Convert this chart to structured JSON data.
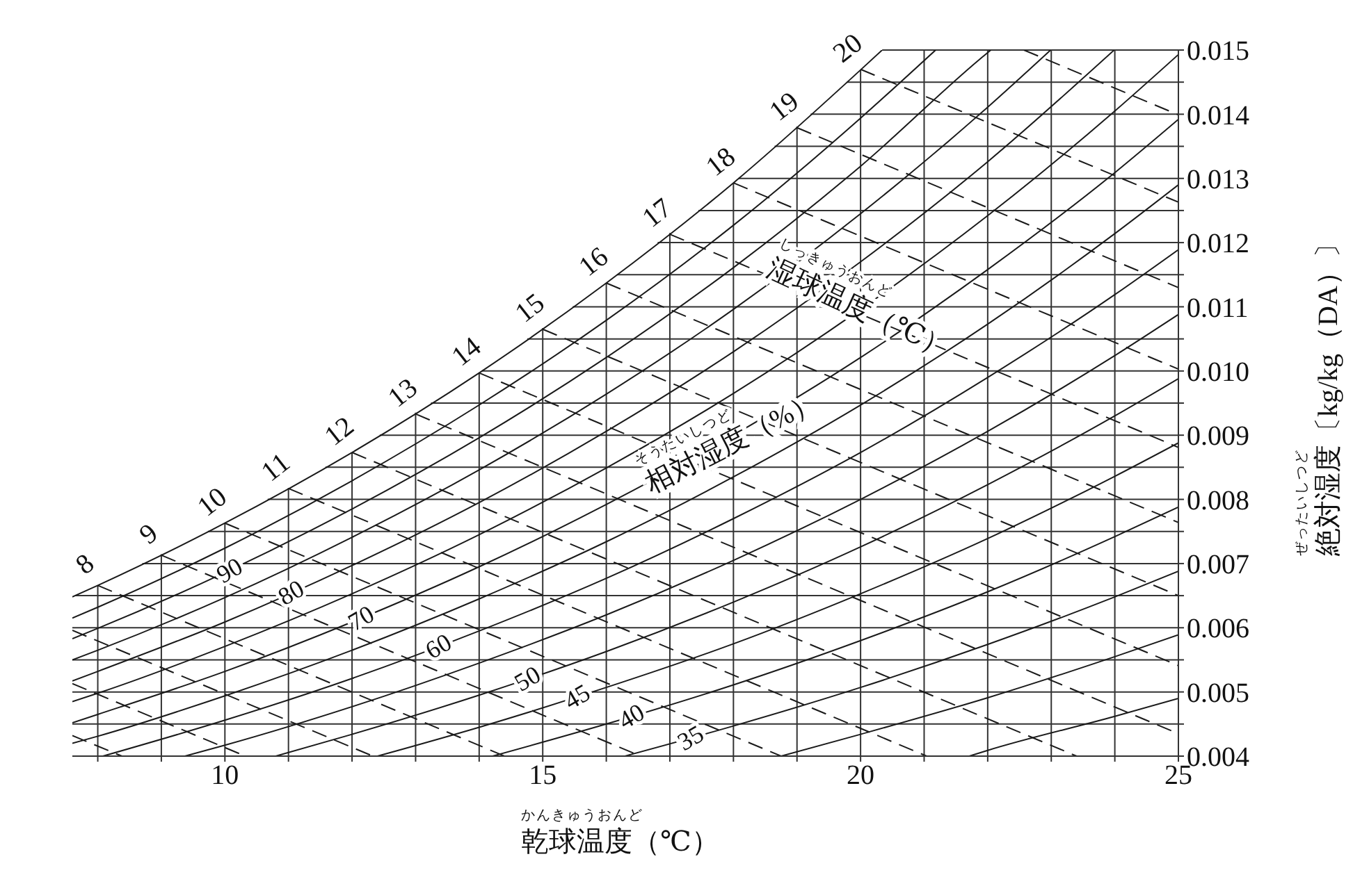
{
  "chart_data": {
    "type": "line",
    "xlabel": "乾球温度（℃）",
    "ylabel": "絶対湿度〔kg/kg（DA）〕",
    "annotations": [
      "湿球温度（℃）",
      "しっきゅうおんど",
      "相対湿度（%）",
      "そうたいしつど",
      "かんきゅうおんど",
      "ぜったいしつど"
    ],
    "xlim": [
      7.6,
      25
    ],
    "ylim": [
      0.004,
      0.015
    ],
    "xticks": [
      {
        "value": 8,
        "label": null
      },
      {
        "value": 9,
        "label": null
      },
      10,
      {
        "value": 11,
        "label": null
      },
      {
        "value": 12,
        "label": null
      },
      {
        "value": 13,
        "label": null
      },
      {
        "value": 14,
        "label": null
      },
      15,
      {
        "value": 16,
        "label": null
      },
      {
        "value": 17,
        "label": null
      },
      {
        "value": 18,
        "label": null
      },
      {
        "value": 19,
        "label": null
      },
      20,
      {
        "value": 21,
        "label": null
      },
      {
        "value": 22,
        "label": null
      },
      {
        "value": 23,
        "label": null
      },
      {
        "value": 24,
        "label": null
      },
      25
    ],
    "yticks": [
      0.004,
      {
        "value": 0.0045,
        "label": null
      },
      0.005,
      {
        "value": 0.0055,
        "label": null
      },
      0.006,
      {
        "value": 0.0065,
        "label": null
      },
      0.007,
      {
        "value": 0.0075,
        "label": null
      },
      0.008,
      {
        "value": 0.0085,
        "label": null
      },
      0.009,
      {
        "value": 0.0095,
        "label": null
      },
      {
        "value": 0.01,
        "label": "0.010"
      },
      {
        "value": 0.0105,
        "label": null
      },
      0.011,
      {
        "value": 0.0115,
        "label": null
      },
      0.012,
      {
        "value": 0.0125,
        "label": null
      },
      0.013,
      {
        "value": 0.0135,
        "label": null
      },
      0.014,
      {
        "value": 0.0145,
        "label": null
      },
      0.015
    ],
    "grid": true,
    "marker": "none",
    "series": [
      {
        "color": "#1a1a1a",
        "line_style": "solid",
        "x": [
          7.6,
          8,
          10,
          12,
          14,
          16,
          18,
          20,
          20.34
        ],
        "values": [
          0.00648,
          0.00666,
          0.00763,
          0.00873,
          0.00997,
          0.01137,
          0.01293,
          0.01469,
          0.015
        ]
      },
      {
        "color": "#1a1a1a",
        "line_style": "solid",
        "x": [
          7.6,
          8,
          10,
          12,
          14,
          16,
          18,
          20,
          21.18
        ],
        "values": [
          0.00615,
          0.00632,
          0.00724,
          0.00829,
          0.00947,
          0.01079,
          0.01227,
          0.01394,
          0.015
        ]
      },
      {
        "name": "90",
        "color": "#1a1a1a",
        "line_style": "solid",
        "x": [
          7.6,
          8,
          10,
          12,
          14,
          16,
          18,
          20,
          22,
          22.05
        ],
        "values": [
          0.00583,
          0.00599,
          0.00686,
          0.00785,
          0.00896,
          0.01021,
          0.01161,
          0.01319,
          0.01496,
          0.015
        ]
      },
      {
        "color": "#1a1a1a",
        "line_style": "solid",
        "x": [
          7.6,
          8,
          10,
          12,
          14,
          16,
          18,
          20,
          22,
          22.99
        ],
        "values": [
          0.0055,
          0.00565,
          0.00647,
          0.00741,
          0.00846,
          0.00964,
          0.01096,
          0.01245,
          0.01411,
          0.015
        ]
      },
      {
        "name": "80",
        "color": "#1a1a1a",
        "line_style": "solid",
        "x": [
          7.6,
          8,
          10,
          12,
          14,
          16,
          18,
          20,
          22,
          23.99
        ],
        "values": [
          0.00517,
          0.00532,
          0.00609,
          0.00697,
          0.00795,
          0.00906,
          0.0103,
          0.0117,
          0.01326,
          0.015
        ]
      },
      {
        "color": "#1a1a1a",
        "line_style": "solid",
        "x": [
          7.6,
          8,
          10,
          12,
          14,
          16,
          18,
          20,
          22,
          24,
          25
        ],
        "values": [
          0.00485,
          0.00498,
          0.00571,
          0.00653,
          0.00745,
          0.00849,
          0.00965,
          0.01096,
          0.01242,
          0.01405,
          0.01493
        ]
      },
      {
        "name": "70",
        "color": "#1a1a1a",
        "line_style": "solid",
        "x": [
          7.6,
          8,
          10,
          12,
          14,
          16,
          18,
          20,
          22,
          24,
          25
        ],
        "values": [
          0.00452,
          0.00465,
          0.00532,
          0.00609,
          0.00695,
          0.00792,
          0.009,
          0.01021,
          0.01158,
          0.01309,
          0.01392
        ]
      },
      {
        "color": "#1a1a1a",
        "line_style": "solid",
        "x": [
          7.6,
          8,
          10,
          12,
          14,
          16,
          18,
          20,
          22,
          24,
          25
        ],
        "values": [
          0.0042,
          0.00431,
          0.00494,
          0.00565,
          0.00645,
          0.00734,
          0.00835,
          0.00947,
          0.01073,
          0.01214,
          0.0129
        ]
      },
      {
        "name": "60",
        "color": "#1a1a1a",
        "line_style": "solid",
        "x": [
          8.08,
          10,
          12,
          14,
          16,
          18,
          20,
          22,
          24,
          25
        ],
        "values": [
          0.004,
          0.00456,
          0.00521,
          0.00595,
          0.00677,
          0.0077,
          0.00873,
          0.0099,
          0.01119,
          0.01189
        ]
      },
      {
        "color": "#1a1a1a",
        "line_style": "solid",
        "x": [
          9.37,
          10,
          12,
          14,
          16,
          18,
          20,
          22,
          24,
          25
        ],
        "values": [
          0.004,
          0.00417,
          0.00477,
          0.00545,
          0.0062,
          0.00705,
          0.008,
          0.00906,
          0.01024,
          0.01088
        ]
      },
      {
        "name": "50",
        "color": "#1a1a1a",
        "line_style": "solid",
        "x": [
          10.8,
          12,
          14,
          16,
          18,
          20,
          22,
          24,
          25
        ],
        "values": [
          0.004,
          0.00434,
          0.00495,
          0.00563,
          0.0064,
          0.00726,
          0.00823,
          0.0093,
          0.00988
        ]
      },
      {
        "name": "45",
        "color": "#1a1a1a",
        "line_style": "solid",
        "x": [
          12.4,
          14,
          16,
          18,
          20,
          22,
          24,
          25
        ],
        "values": [
          0.004,
          0.00445,
          0.00507,
          0.00575,
          0.00653,
          0.00739,
          0.00836,
          0.00888
        ]
      },
      {
        "name": "40",
        "color": "#1a1a1a",
        "line_style": "solid",
        "x": [
          14.21,
          16,
          18,
          20,
          22,
          24,
          25
        ],
        "values": [
          0.004,
          0.0045,
          0.00511,
          0.0058,
          0.00656,
          0.00742,
          0.00788
        ]
      },
      {
        "name": "35",
        "color": "#1a1a1a",
        "line_style": "solid",
        "x": [
          16.29,
          18,
          20,
          22,
          24,
          25
        ],
        "values": [
          0.004,
          0.00447,
          0.00507,
          0.00574,
          0.00648,
          0.00688
        ]
      },
      {
        "color": "#1a1a1a",
        "line_style": "solid",
        "x": [
          18.75,
          20,
          22,
          24,
          25
        ],
        "values": [
          0.004,
          0.00434,
          0.00491,
          0.00555,
          0.00589
        ]
      },
      {
        "color": "#1a1a1a",
        "line_style": "solid",
        "x": [
          21.71,
          22,
          24,
          25
        ],
        "values": [
          0.004,
          0.00409,
          0.00462,
          0.0049
        ]
      },
      {
        "color": "#1a1a1a",
        "line_style": "dashed",
        "x": [
          7.6,
          8.38
        ],
        "values": [
          0.00432,
          0.004
        ]
      },
      {
        "color": "#1a1a1a",
        "line_style": "dashed",
        "x": [
          7.6,
          10.32
        ],
        "values": [
          0.00513,
          0.004
        ]
      },
      {
        "color": "#1a1a1a",
        "line_style": "dashed",
        "x": [
          7.6,
          12.33
        ],
        "values": [
          0.00596,
          0.004
        ]
      },
      {
        "name": "8",
        "color": "#1a1a1a",
        "line_style": "dashed",
        "x": [
          8,
          14.4
        ],
        "values": [
          0.00666,
          0.004
        ]
      },
      {
        "name": "9",
        "color": "#1a1a1a",
        "line_style": "dashed",
        "x": [
          9,
          16.54
        ],
        "values": [
          0.00713,
          0.004
        ]
      },
      {
        "name": "10",
        "color": "#1a1a1a",
        "line_style": "dashed",
        "x": [
          10,
          18.75
        ],
        "values": [
          0.00763,
          0.004
        ]
      },
      {
        "name": "11",
        "color": "#1a1a1a",
        "line_style": "dashed",
        "x": [
          11,
          21.04
        ],
        "values": [
          0.00817,
          0.004
        ]
      },
      {
        "name": "12",
        "color": "#1a1a1a",
        "line_style": "dashed",
        "x": [
          12,
          23.4
        ],
        "values": [
          0.00873,
          0.004
        ]
      },
      {
        "name": "13",
        "color": "#1a1a1a",
        "line_style": "dashed",
        "x": [
          13,
          25
        ],
        "values": [
          0.00933,
          0.00435
        ]
      },
      {
        "name": "14",
        "color": "#1a1a1a",
        "line_style": "dashed",
        "x": [
          14,
          25
        ],
        "values": [
          0.00997,
          0.00541
        ]
      },
      {
        "name": "15",
        "color": "#1a1a1a",
        "line_style": "dashed",
        "x": [
          15,
          25
        ],
        "values": [
          0.01065,
          0.0065
        ]
      },
      {
        "name": "16",
        "color": "#1a1a1a",
        "line_style": "dashed",
        "x": [
          16,
          25
        ],
        "values": [
          0.01137,
          0.00764
        ]
      },
      {
        "name": "17",
        "color": "#1a1a1a",
        "line_style": "dashed",
        "x": [
          17,
          25
        ],
        "values": [
          0.01213,
          0.00881
        ]
      },
      {
        "name": "18",
        "color": "#1a1a1a",
        "line_style": "dashed",
        "x": [
          18,
          25
        ],
        "values": [
          0.01293,
          0.01003
        ]
      },
      {
        "name": "19",
        "color": "#1a1a1a",
        "line_style": "dashed",
        "x": [
          19,
          25
        ],
        "values": [
          0.01379,
          0.0113
        ]
      },
      {
        "name": "20",
        "color": "#1a1a1a",
        "line_style": "dashed",
        "x": [
          20,
          25
        ],
        "values": [
          0.0147,
          0.01263
        ]
      },
      {
        "color": "#1a1a1a",
        "line_style": "dashed",
        "x": [
          22.57,
          25
        ],
        "values": [
          0.015,
          0.01399
        ]
      }
    ]
  }
}
